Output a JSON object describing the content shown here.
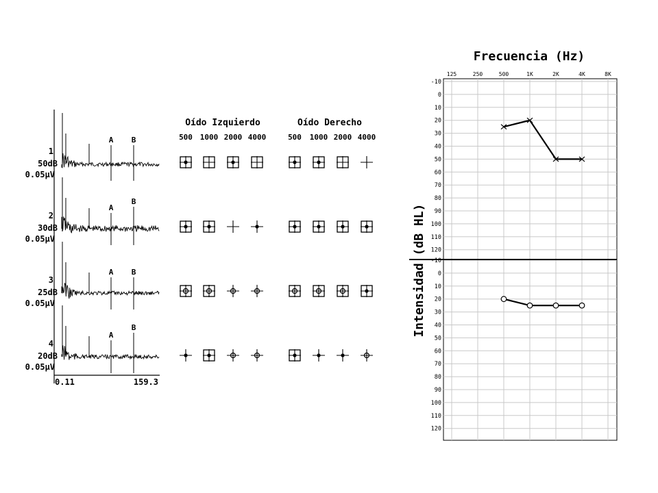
{
  "chart_data": [
    {
      "type": "line",
      "traces": [
        {
          "index": "1",
          "level": "50dB",
          "scale": "0.05µV"
        },
        {
          "index": "2",
          "level": "30dB",
          "scale": "0.05µV"
        },
        {
          "index": "3",
          "level": "25dB",
          "scale": "0.05µV"
        },
        {
          "index": "4",
          "level": "20dB",
          "scale": "0.05µV"
        }
      ],
      "markers": [
        "A",
        "B"
      ],
      "x_ticks": [
        "0.11",
        "159.3"
      ]
    },
    {
      "type": "table",
      "groups": [
        "Oído Izquierdo",
        "Oído Derecho"
      ],
      "columns": [
        "500",
        "1000",
        "2000",
        "4000"
      ],
      "rows": [
        {
          "left": [
            "box-dot",
            "box",
            "box-dot",
            "box"
          ],
          "right": [
            "box-dot",
            "box-dot",
            "box",
            "cross"
          ]
        },
        {
          "left": [
            "box-dot",
            "box-dot",
            "cross",
            "cross-dot"
          ],
          "right": [
            "box-dot",
            "box-dot",
            "box-dot",
            "box-dot"
          ]
        },
        {
          "left": [
            "box-circle",
            "box-circle",
            "cross-circle",
            "cross-circle"
          ],
          "right": [
            "box-circle",
            "box-circle",
            "box-circle",
            "box-dot"
          ]
        },
        {
          "left": [
            "cross-dot",
            "box-dot",
            "cross-circle",
            "cross-circle"
          ],
          "right": [
            "box-dot",
            "cross-dot",
            "cross-dot",
            "cross-circle"
          ]
        }
      ]
    },
    {
      "type": "line",
      "title": "Frecuencia (Hz)",
      "ylabel": "Intensidad (dB HL)",
      "x_ticks": [
        "125",
        "250",
        "500",
        "1K",
        "2K",
        "4K",
        "8K"
      ],
      "y_ticks": [
        "-10",
        "0",
        "10",
        "20",
        "30",
        "40",
        "50",
        "60",
        "70",
        "80",
        "90",
        "100",
        "110",
        "120"
      ],
      "ylim": [
        -10,
        120
      ],
      "panels": [
        {
          "marker": "x",
          "series": [
            {
              "x": [
                "500",
                "1K",
                "2K",
                "4K"
              ],
              "y": [
                25,
                20,
                50,
                50
              ]
            }
          ]
        },
        {
          "marker": "o",
          "series": [
            {
              "x": [
                "500",
                "1K",
                "2K",
                "4K"
              ],
              "y": [
                20,
                25,
                25,
                25
              ]
            }
          ]
        }
      ]
    }
  ]
}
